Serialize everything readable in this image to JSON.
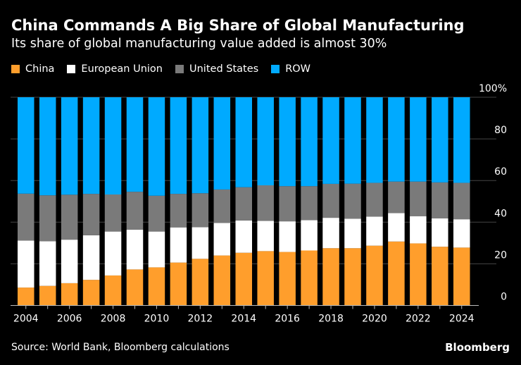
{
  "header": {
    "title": "China Commands A Big Share of Global Manufacturing",
    "subtitle": "Its share of global manufacturing value added is almost 30%"
  },
  "footer": {
    "source": "Source: World Bank, Bloomberg calculations",
    "brand": "Bloomberg"
  },
  "chart_data": {
    "type": "bar",
    "stacked": true,
    "title": "China Commands A Big Share of Global Manufacturing",
    "subtitle": "Its share of global manufacturing value added is almost 30%",
    "xlabel": "",
    "ylabel": "",
    "ylim": [
      0,
      100
    ],
    "yticks": [
      0,
      20,
      40,
      60,
      80,
      100
    ],
    "ytick_labels": [
      "0",
      "20",
      "40",
      "60",
      "80",
      "100%"
    ],
    "xtick_labels": [
      "2004",
      "2006",
      "2008",
      "2010",
      "2012",
      "2014",
      "2016",
      "2018",
      "2020",
      "2022",
      "2024"
    ],
    "grid": true,
    "legend": "top-left",
    "categories": [
      2004,
      2005,
      2006,
      2007,
      2008,
      2009,
      2010,
      2011,
      2012,
      2013,
      2014,
      2015,
      2016,
      2017,
      2018,
      2019,
      2020,
      2021,
      2022,
      2023,
      2024
    ],
    "series": [
      {
        "name": "China",
        "color": "#ff9e2c",
        "values": [
          8.6,
          9.4,
          10.7,
          12.3,
          14.4,
          17.3,
          18.3,
          20.6,
          22.4,
          24.0,
          25.3,
          26.1,
          25.7,
          26.4,
          27.5,
          27.5,
          28.7,
          30.7,
          29.8,
          28.2,
          27.8
        ]
      },
      {
        "name": "European Union",
        "color": "#ffffff",
        "values": [
          22.6,
          21.4,
          20.9,
          21.4,
          21.1,
          19.1,
          17.2,
          16.9,
          15.2,
          15.6,
          15.5,
          14.5,
          14.7,
          14.6,
          14.6,
          14.2,
          14.0,
          13.7,
          13.1,
          13.6,
          13.6
        ]
      },
      {
        "name": "United States",
        "color": "#7a7a7a",
        "values": [
          22.5,
          22.1,
          21.6,
          19.9,
          17.8,
          18.2,
          17.2,
          16.1,
          16.3,
          16.1,
          16.0,
          17.1,
          16.9,
          16.3,
          16.3,
          16.8,
          16.2,
          15.1,
          16.6,
          17.3,
          17.5
        ]
      },
      {
        "name": "ROW",
        "color": "#00aaff",
        "values": [
          46.3,
          47.1,
          46.8,
          46.4,
          46.7,
          45.4,
          47.3,
          46.4,
          46.1,
          44.3,
          43.2,
          42.3,
          42.7,
          42.7,
          41.6,
          41.5,
          41.1,
          40.5,
          40.5,
          40.9,
          41.1
        ]
      }
    ]
  }
}
